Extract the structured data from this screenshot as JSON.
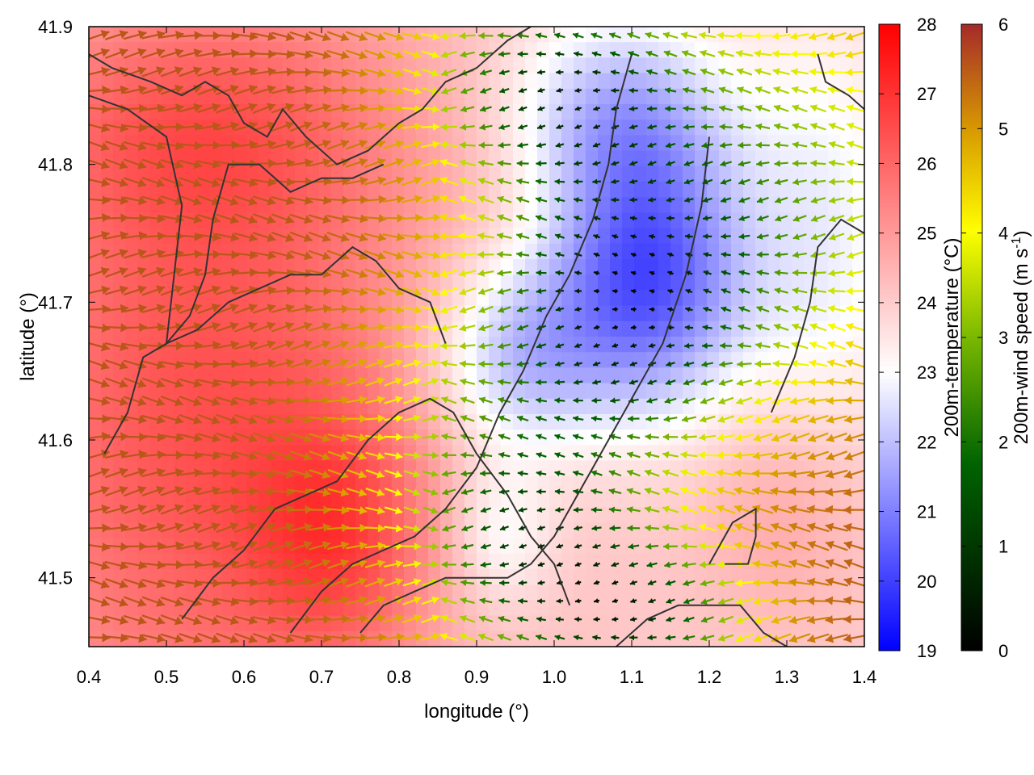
{
  "chart_data": {
    "type": "heatmap",
    "title": "",
    "xlabel": "longitude (°)",
    "ylabel": "latitude (°)",
    "xlim": [
      0.4,
      1.4
    ],
    "ylim": [
      41.45,
      41.9
    ],
    "x_ticks": [
      "0.4",
      "0.5",
      "0.6",
      "0.7",
      "0.8",
      "0.9",
      "1.0",
      "1.1",
      "1.2",
      "1.3",
      "1.4"
    ],
    "y_ticks": [
      "41.5",
      "41.6",
      "41.7",
      "41.8",
      "41.9"
    ],
    "grid": false,
    "temperature_colorbar": {
      "label": "200m-temperature (°C)",
      "range": [
        19,
        28
      ],
      "ticks": [
        "19",
        "20",
        "21",
        "22",
        "23",
        "24",
        "25",
        "26",
        "27",
        "28"
      ],
      "colors": [
        "#0000ff",
        "#ffffff",
        "#ff0000"
      ]
    },
    "wind_colorbar": {
      "label_main": "200m-wind speed (m s",
      "label_sup": "-1",
      "label_end": ")",
      "range": [
        0,
        6
      ],
      "ticks": [
        "0",
        "1",
        "2",
        "3",
        "4",
        "5",
        "6"
      ],
      "colors": [
        "#000000",
        "#006400",
        "#7ab800",
        "#ffff00",
        "#d89a00",
        "#a52a2a"
      ]
    },
    "temperature_field": {
      "background": 24,
      "features": [
        {
          "lon": 0.55,
          "lat": 41.62,
          "sigma_lon": 0.22,
          "sigma_lat": 0.2,
          "amp": 2.4
        },
        {
          "lon": 0.72,
          "lat": 41.53,
          "sigma_lon": 0.08,
          "sigma_lat": 0.06,
          "amp": 1.5
        },
        {
          "lon": 0.55,
          "lat": 41.83,
          "sigma_lon": 0.18,
          "sigma_lat": 0.06,
          "amp": 1.2
        },
        {
          "lon": 1.12,
          "lat": 41.72,
          "sigma_lon": 0.09,
          "sigma_lat": 0.07,
          "amp": -3.8
        },
        {
          "lon": 0.95,
          "lat": 41.66,
          "sigma_lon": 0.08,
          "sigma_lat": 0.05,
          "amp": -2.2
        },
        {
          "lon": 1.08,
          "lat": 41.84,
          "sigma_lon": 0.1,
          "sigma_lat": 0.05,
          "amp": -2.0
        },
        {
          "lon": 1.35,
          "lat": 41.75,
          "sigma_lon": 0.08,
          "sigma_lat": 0.12,
          "amp": -1.2
        },
        {
          "lon": 0.93,
          "lat": 41.53,
          "sigma_lon": 0.05,
          "sigma_lat": 0.04,
          "amp": -1.3
        },
        {
          "lon": 1.3,
          "lat": 41.55,
          "sigma_lon": 0.08,
          "sigma_lat": 0.06,
          "amp": 0.8
        }
      ]
    },
    "wind_field": {
      "background_speed": 5.6,
      "speed_features": [
        {
          "lon": 1.08,
          "lat": 41.7,
          "sigma_lon": 0.12,
          "sigma_lat": 0.08,
          "amp": -5.0
        },
        {
          "lon": 1.0,
          "lat": 41.86,
          "sigma_lon": 0.12,
          "sigma_lat": 0.05,
          "amp": -4.2
        },
        {
          "lon": 0.98,
          "lat": 41.52,
          "sigma_lon": 0.1,
          "sigma_lat": 0.06,
          "amp": -3.6
        },
        {
          "lon": 1.12,
          "lat": 41.47,
          "sigma_lon": 0.1,
          "sigma_lat": 0.04,
          "amp": -3.8
        },
        {
          "lon": 1.3,
          "lat": 41.78,
          "sigma_lon": 0.14,
          "sigma_lat": 0.1,
          "amp": -2.4
        },
        {
          "lon": 0.85,
          "lat": 41.6,
          "sigma_lon": 0.1,
          "sigma_lat": 0.08,
          "amp": -1.4
        }
      ],
      "direction_regions": [
        {
          "lon": 0.4,
          "lat": 41.9,
          "lon2": 0.85,
          "lat2": 41.45,
          "dir": "east"
        },
        {
          "lon": 0.85,
          "lat": 41.9,
          "lon2": 1.4,
          "lat2": 41.45,
          "dir": "west"
        }
      ]
    },
    "coastlines": [
      [
        [
          0.4,
          41.88
        ],
        [
          0.43,
          41.87
        ],
        [
          0.48,
          41.86
        ],
        [
          0.52,
          41.85
        ],
        [
          0.55,
          41.86
        ],
        [
          0.58,
          41.85
        ],
        [
          0.6,
          41.83
        ],
        [
          0.63,
          41.82
        ],
        [
          0.65,
          41.84
        ],
        [
          0.68,
          41.82
        ],
        [
          0.72,
          41.8
        ],
        [
          0.76,
          41.81
        ],
        [
          0.8,
          41.83
        ],
        [
          0.83,
          41.84
        ],
        [
          0.86,
          41.86
        ],
        [
          0.9,
          41.87
        ],
        [
          0.94,
          41.89
        ],
        [
          0.97,
          41.9
        ]
      ],
      [
        [
          0.4,
          41.85
        ],
        [
          0.45,
          41.84
        ],
        [
          0.5,
          41.82
        ],
        [
          0.52,
          41.77
        ],
        [
          0.51,
          41.72
        ],
        [
          0.5,
          41.67
        ],
        [
          0.53,
          41.69
        ],
        [
          0.55,
          41.72
        ],
        [
          0.56,
          41.76
        ],
        [
          0.58,
          41.8
        ],
        [
          0.62,
          41.8
        ],
        [
          0.66,
          41.78
        ],
        [
          0.7,
          41.79
        ],
        [
          0.74,
          41.79
        ],
        [
          0.78,
          41.8
        ]
      ],
      [
        [
          0.42,
          41.59
        ],
        [
          0.45,
          41.62
        ],
        [
          0.47,
          41.66
        ],
        [
          0.5,
          41.67
        ],
        [
          0.54,
          41.68
        ],
        [
          0.58,
          41.7
        ],
        [
          0.62,
          41.71
        ],
        [
          0.66,
          41.72
        ],
        [
          0.7,
          41.72
        ],
        [
          0.74,
          41.74
        ],
        [
          0.77,
          41.73
        ],
        [
          0.8,
          41.71
        ],
        [
          0.84,
          41.7
        ],
        [
          0.86,
          41.67
        ]
      ],
      [
        [
          0.52,
          41.47
        ],
        [
          0.56,
          41.5
        ],
        [
          0.6,
          41.52
        ],
        [
          0.64,
          41.55
        ],
        [
          0.68,
          41.56
        ],
        [
          0.72,
          41.57
        ],
        [
          0.76,
          41.6
        ],
        [
          0.8,
          41.62
        ],
        [
          0.84,
          41.63
        ],
        [
          0.87,
          41.62
        ],
        [
          0.9,
          41.59
        ],
        [
          0.94,
          41.56
        ],
        [
          0.97,
          41.53
        ],
        [
          1.0,
          41.51
        ],
        [
          1.02,
          41.48
        ]
      ],
      [
        [
          0.66,
          41.46
        ],
        [
          0.7,
          41.49
        ],
        [
          0.74,
          41.51
        ],
        [
          0.78,
          41.52
        ],
        [
          0.82,
          41.53
        ],
        [
          0.86,
          41.55
        ],
        [
          0.9,
          41.58
        ],
        [
          0.93,
          41.62
        ],
        [
          0.96,
          41.65
        ],
        [
          0.99,
          41.69
        ],
        [
          1.02,
          41.72
        ],
        [
          1.05,
          41.76
        ],
        [
          1.07,
          41.8
        ],
        [
          1.08,
          41.84
        ],
        [
          1.1,
          41.88
        ]
      ],
      [
        [
          0.75,
          41.46
        ],
        [
          0.78,
          41.48
        ],
        [
          0.82,
          41.49
        ],
        [
          0.86,
          41.5
        ],
        [
          0.9,
          41.5
        ],
        [
          0.94,
          41.5
        ],
        [
          0.97,
          41.51
        ],
        [
          1.0,
          41.53
        ],
        [
          1.03,
          41.56
        ],
        [
          1.06,
          41.59
        ],
        [
          1.1,
          41.63
        ],
        [
          1.14,
          41.67
        ],
        [
          1.17,
          41.72
        ],
        [
          1.19,
          41.77
        ],
        [
          1.2,
          41.82
        ]
      ],
      [
        [
          1.08,
          41.45
        ],
        [
          1.12,
          41.47
        ],
        [
          1.16,
          41.48
        ],
        [
          1.2,
          41.48
        ],
        [
          1.24,
          41.48
        ],
        [
          1.27,
          41.46
        ],
        [
          1.3,
          41.45
        ]
      ],
      [
        [
          1.2,
          41.51
        ],
        [
          1.23,
          41.54
        ],
        [
          1.26,
          41.55
        ],
        [
          1.26,
          41.53
        ],
        [
          1.25,
          41.51
        ],
        [
          1.22,
          41.51
        ]
      ],
      [
        [
          1.28,
          41.62
        ],
        [
          1.31,
          41.66
        ],
        [
          1.33,
          41.7
        ],
        [
          1.34,
          41.74
        ],
        [
          1.37,
          41.76
        ],
        [
          1.4,
          41.75
        ]
      ],
      [
        [
          1.34,
          41.88
        ],
        [
          1.35,
          41.86
        ],
        [
          1.38,
          41.85
        ],
        [
          1.4,
          41.84
        ]
      ]
    ]
  }
}
